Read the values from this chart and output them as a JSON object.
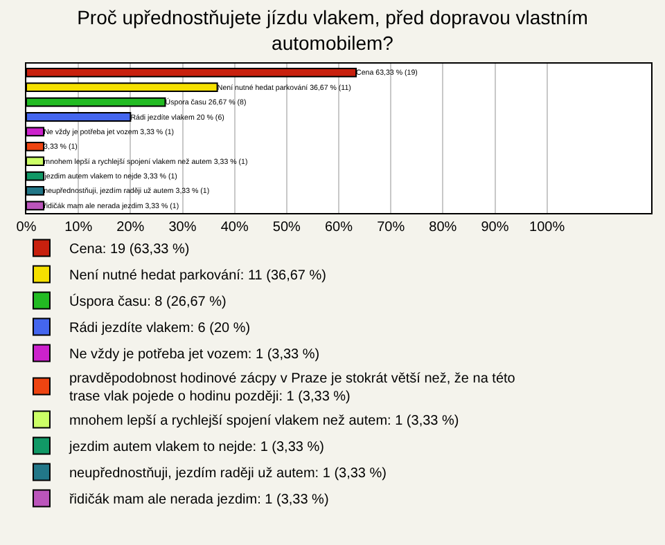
{
  "chart_data": {
    "type": "bar",
    "orientation": "horizontal",
    "title": "Proč upřednostňujete jízdu vlakem, před dopravou vlastním automobilem?",
    "categories": [
      null,
      null,
      null,
      null,
      null,
      null,
      null,
      null,
      null,
      null
    ],
    "series": [
      {
        "name": "Cena: 19 (63,33 %)",
        "color": "#c8200e",
        "values": [
          63.33,
          null,
          null,
          null,
          null,
          null,
          null,
          null,
          null,
          null
        ],
        "value_labels": [
          "Cena 63,33 % (19)",
          null,
          null,
          null,
          null,
          null,
          null,
          null,
          null,
          null
        ]
      },
      {
        "name": "Není nutné hedat parkování: 11 (36,67 %)",
        "color": "#f5e000",
        "values": [
          null,
          36.67,
          null,
          null,
          null,
          null,
          null,
          null,
          null,
          null
        ],
        "value_labels": [
          null,
          "Není nutné hedat parkování 36,67 % (11)",
          null,
          null,
          null,
          null,
          null,
          null,
          null,
          null
        ]
      },
      {
        "name": "Úspora času: 8 (26,67 %)",
        "color": "#22bb22",
        "values": [
          null,
          null,
          26.67,
          null,
          null,
          null,
          null,
          null,
          null,
          null
        ],
        "value_labels": [
          null,
          null,
          "Úspora času 26,67 % (8)",
          null,
          null,
          null,
          null,
          null,
          null,
          null
        ]
      },
      {
        "name": "Rádi jezdíte vlakem: 6 (20 %)",
        "color": "#4466ee",
        "values": [
          null,
          null,
          null,
          20,
          null,
          null,
          null,
          null,
          null,
          null
        ],
        "value_labels": [
          null,
          null,
          null,
          "Rádi jezdíte vlakem 20 % (6)",
          null,
          null,
          null,
          null,
          null,
          null
        ]
      },
      {
        "name": "Ne vždy je potřeba jet vozem: 1 (3,33 %)",
        "color": "#cc22cc",
        "values": [
          null,
          null,
          null,
          null,
          3.33,
          null,
          null,
          null,
          null,
          null
        ],
        "value_labels": [
          null,
          null,
          null,
          null,
          "Ne vždy je potřeba jet vozem 3,33 % (1)",
          null,
          null,
          null,
          null,
          null
        ]
      },
      {
        "name": "pravděpodobnost hodinové zácpy v Praze je stokrát větší než, že na této trase vlak pojede o hodinu později: 1 (3,33 %)",
        "color": "#ee4411",
        "values": [
          null,
          null,
          null,
          null,
          null,
          3.33,
          null,
          null,
          null,
          null
        ],
        "value_labels": [
          null,
          null,
          null,
          null,
          null,
          "3,33 % (1)",
          null,
          null,
          null,
          null
        ]
      },
      {
        "name": "mnohem lepší a rychlejší spojení vlakem než autem: 1 (3,33 %)",
        "color": "#ccff66",
        "values": [
          null,
          null,
          null,
          null,
          null,
          null,
          3.33,
          null,
          null,
          null
        ],
        "value_labels": [
          null,
          null,
          null,
          null,
          null,
          null,
          "mnohem lepší a rychlejší spojení vlakem než autem 3,33 % (1)",
          null,
          null,
          null
        ]
      },
      {
        "name": "jezdim autem vlakem to nejde: 1 (3,33 %)",
        "color": "#119966",
        "values": [
          null,
          null,
          null,
          null,
          null,
          null,
          null,
          3.33,
          null,
          null
        ],
        "value_labels": [
          null,
          null,
          null,
          null,
          null,
          null,
          null,
          "jezdim autem vlakem to nejde 3,33 % (1)",
          null,
          null
        ]
      },
      {
        "name": "neupřednostňuji, jezdím raději už autem: 1 (3,33 %)",
        "color": "#227788",
        "values": [
          null,
          null,
          null,
          null,
          null,
          null,
          null,
          null,
          3.33,
          null
        ],
        "value_labels": [
          null,
          null,
          null,
          null,
          null,
          null,
          null,
          null,
          "neupřednostňuji, jezdím raději už autem 3,33 % (1)",
          null
        ]
      },
      {
        "name": "řidičák mam ale nerada jezdim: 1 (3,33 %)",
        "color": "#bb55bb",
        "values": [
          null,
          null,
          null,
          null,
          null,
          null,
          null,
          null,
          null,
          3.33
        ],
        "value_labels": [
          null,
          null,
          null,
          null,
          null,
          null,
          null,
          null,
          null,
          "řidičák mam ale nerada jezdim 3,33 % (1)"
        ]
      }
    ],
    "xlim": [
      0,
      120
    ],
    "xticks": [
      {
        "value": 0,
        "label": "0%"
      },
      {
        "value": 10,
        "label": "10%"
      },
      {
        "value": 20,
        "label": "20%"
      },
      {
        "value": 30,
        "label": "30%"
      },
      {
        "value": 40,
        "label": "40%"
      },
      {
        "value": 50,
        "label": "50%"
      },
      {
        "value": 60,
        "label": "60%"
      },
      {
        "value": 70,
        "label": "70%"
      },
      {
        "value": 80,
        "label": "80%"
      },
      {
        "value": 90,
        "label": "90%"
      },
      {
        "value": 100,
        "label": "100%"
      }
    ],
    "grid": "x",
    "legend": "bottom",
    "tick_labels": "x"
  }
}
